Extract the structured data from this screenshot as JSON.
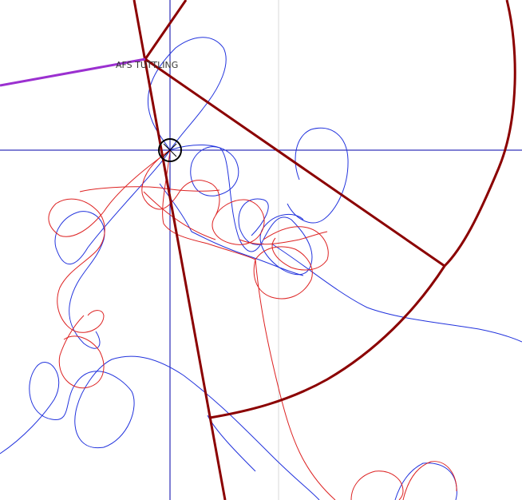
{
  "map": {
    "waypoint_label": "AFS TUTTLING",
    "colors": {
      "crosshair": "#0000aa",
      "grid": "#d0d0d0",
      "boundary": "#8b0000",
      "route": "#9b30d0",
      "track_blue": "#2233dd",
      "track_red": "#dd2222",
      "center_marker": "#000000"
    }
  }
}
